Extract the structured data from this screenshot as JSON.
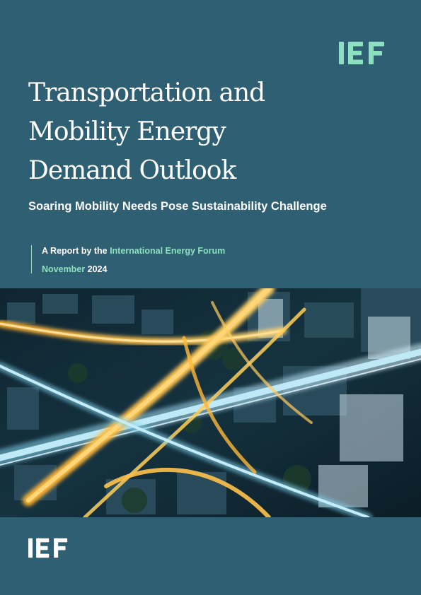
{
  "brand": {
    "logo_text": "IEF",
    "accent_color": "#8de0c0",
    "background_color": "#2e5f73"
  },
  "cover": {
    "title_lines": [
      "Transportation and",
      "Mobility Energy",
      "Demand Outlook"
    ],
    "subtitle": "Soaring Mobility Needs Pose Sustainability Challenge",
    "byline_prefix": "A Report by the ",
    "byline_org": "International Energy Forum",
    "date_month": "November",
    "date_year": "2024"
  },
  "image": {
    "icon": "aerial-highway-interchange-photo"
  }
}
